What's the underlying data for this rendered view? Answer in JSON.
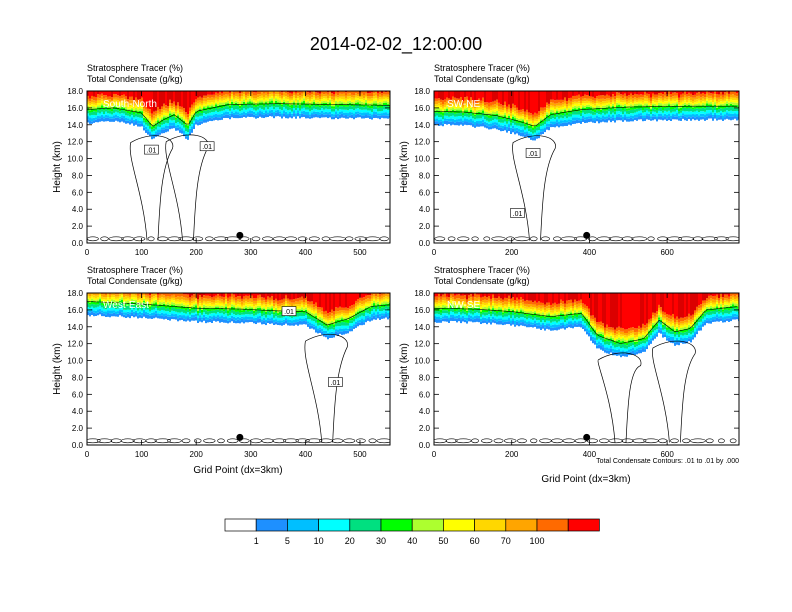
{
  "title": "2014-02-02_12:00:00",
  "colors": {
    "bands": [
      "#ffffff",
      "#1e90ff",
      "#00bfff",
      "#00ffff",
      "#00e080",
      "#00ff00",
      "#adff2f",
      "#ffff00",
      "#ffd700",
      "#ffa500",
      "#ff6a00",
      "#ff0000"
    ],
    "contour": "#000000",
    "marker": "#000000"
  },
  "chart_data": [
    {
      "type": "heatmap",
      "id": "south-north",
      "section_label": "South-North",
      "title_lines": [
        "Stratosphere Tracer   (%)",
        "Total Condensate   (g/kg)"
      ],
      "xlabel": "",
      "ylabel": "Height (km)",
      "xlim": [
        0,
        555
      ],
      "ylim": [
        0,
        18
      ],
      "xticks": [
        "0",
        "100",
        "200",
        "300",
        "400",
        "500"
      ],
      "xtick_values": [
        0,
        100,
        200,
        300,
        400,
        500
      ],
      "yticks": [
        "0.0",
        "2.0",
        "4.0",
        "6.0",
        "8.0",
        "10.0",
        "12.0",
        "14.0",
        "16.0",
        "18.0"
      ],
      "ytick_values": [
        0,
        2,
        4,
        6,
        8,
        10,
        12,
        14,
        16,
        18
      ],
      "contour_labels": [
        {
          "text": ".01",
          "x": 118,
          "y": 11.0
        },
        {
          "text": ".01",
          "x": 220,
          "y": 11.4
        }
      ],
      "tracer_profile": [
        [
          0,
          14.2
        ],
        [
          50,
          14.4
        ],
        [
          100,
          13.8
        ],
        [
          120,
          12.2
        ],
        [
          140,
          13.0
        ],
        [
          160,
          13.6
        ],
        [
          185,
          12.3
        ],
        [
          200,
          14.0
        ],
        [
          260,
          14.8
        ],
        [
          350,
          14.9
        ],
        [
          450,
          14.8
        ],
        [
          555,
          14.7
        ]
      ],
      "marker": {
        "x": 280,
        "y": 0.9
      },
      "note": ""
    },
    {
      "type": "heatmap",
      "id": "sw-ne",
      "section_label": "SW-NE",
      "title_lines": [
        "Stratosphere Tracer   (%)",
        "Total Condensate   (g/kg)"
      ],
      "xlabel": "",
      "ylabel": "Height (km)",
      "xlim": [
        0,
        785
      ],
      "ylim": [
        0,
        18
      ],
      "xticks": [
        "0",
        "200",
        "400",
        "600"
      ],
      "xtick_values": [
        0,
        200,
        400,
        600
      ],
      "yticks": [
        "0.0",
        "2.0",
        "4.0",
        "6.0",
        "8.0",
        "10.0",
        "12.0",
        "14.0",
        "16.0",
        "18.0"
      ],
      "ytick_values": [
        0,
        2,
        4,
        6,
        8,
        10,
        12,
        14,
        16,
        18
      ],
      "contour_labels": [
        {
          "text": ".01",
          "x": 255,
          "y": 10.6
        },
        {
          "text": ".01",
          "x": 215,
          "y": 3.5
        }
      ],
      "tracer_profile": [
        [
          0,
          14.0
        ],
        [
          80,
          13.9
        ],
        [
          160,
          13.5
        ],
        [
          220,
          12.8
        ],
        [
          260,
          12.2
        ],
        [
          300,
          13.6
        ],
        [
          380,
          14.2
        ],
        [
          500,
          14.5
        ],
        [
          650,
          14.6
        ],
        [
          785,
          14.6
        ]
      ],
      "marker": {
        "x": 393,
        "y": 0.9
      },
      "note": ""
    },
    {
      "type": "heatmap",
      "id": "west-east",
      "section_label": "West-East",
      "title_lines": [
        "Stratosphere Tracer   (%)",
        "Total Condensate   (g/kg)"
      ],
      "xlabel": "Grid Point (dx=3km)",
      "ylabel": "Height (km)",
      "xlim": [
        0,
        555
      ],
      "ylim": [
        0,
        18
      ],
      "xticks": [
        "0",
        "100",
        "200",
        "300",
        "400",
        "500"
      ],
      "xtick_values": [
        0,
        100,
        200,
        300,
        400,
        500
      ],
      "yticks": [
        "0.0",
        "2.0",
        "4.0",
        "6.0",
        "8.0",
        "10.0",
        "12.0",
        "14.0",
        "16.0",
        "18.0"
      ],
      "ytick_values": [
        0,
        2,
        4,
        6,
        8,
        10,
        12,
        14,
        16,
        18
      ],
      "contour_labels": [
        {
          "text": ".01",
          "x": 370,
          "y": 15.8
        },
        {
          "text": ".01",
          "x": 455,
          "y": 7.4
        }
      ],
      "tracer_profile": [
        [
          0,
          15.4
        ],
        [
          100,
          15.1
        ],
        [
          200,
          14.6
        ],
        [
          280,
          14.5
        ],
        [
          340,
          14.3
        ],
        [
          400,
          14.2
        ],
        [
          440,
          12.6
        ],
        [
          480,
          13.4
        ],
        [
          520,
          14.8
        ],
        [
          555,
          15.0
        ]
      ],
      "marker": {
        "x": 280,
        "y": 0.9
      },
      "note": ""
    },
    {
      "type": "heatmap",
      "id": "nw-se",
      "section_label": "NW-SE",
      "title_lines": [
        "Stratosphere Tracer   (%)",
        "Total Condensate   (g/kg)"
      ],
      "xlabel": "Grid Point (dx=3km)",
      "ylabel": "Height (km)",
      "xlim": [
        0,
        785
      ],
      "ylim": [
        0,
        18
      ],
      "xticks": [
        "0",
        "200",
        "400",
        "600"
      ],
      "xtick_values": [
        0,
        200,
        400,
        600
      ],
      "yticks": [
        "0.0",
        "2.0",
        "4.0",
        "6.0",
        "8.0",
        "10.0",
        "12.0",
        "14.0",
        "16.0",
        "18.0"
      ],
      "ytick_values": [
        0,
        2,
        4,
        6,
        8,
        10,
        12,
        14,
        16,
        18
      ],
      "contour_labels": [],
      "tracer_profile": [
        [
          0,
          14.6
        ],
        [
          100,
          14.5
        ],
        [
          200,
          14.2
        ],
        [
          300,
          13.6
        ],
        [
          380,
          14.0
        ],
        [
          420,
          11.4
        ],
        [
          480,
          10.4
        ],
        [
          540,
          11.0
        ],
        [
          580,
          13.2
        ],
        [
          620,
          11.8
        ],
        [
          660,
          12.2
        ],
        [
          700,
          14.4
        ],
        [
          785,
          14.8
        ]
      ],
      "marker": {
        "x": 393,
        "y": 0.9
      },
      "note": "Total Condensate Contours: .01 to .01 by .000"
    }
  ],
  "legend": {
    "labels": [
      "1",
      "5",
      "10",
      "20",
      "30",
      "40",
      "50",
      "60",
      "70",
      "100"
    ]
  }
}
